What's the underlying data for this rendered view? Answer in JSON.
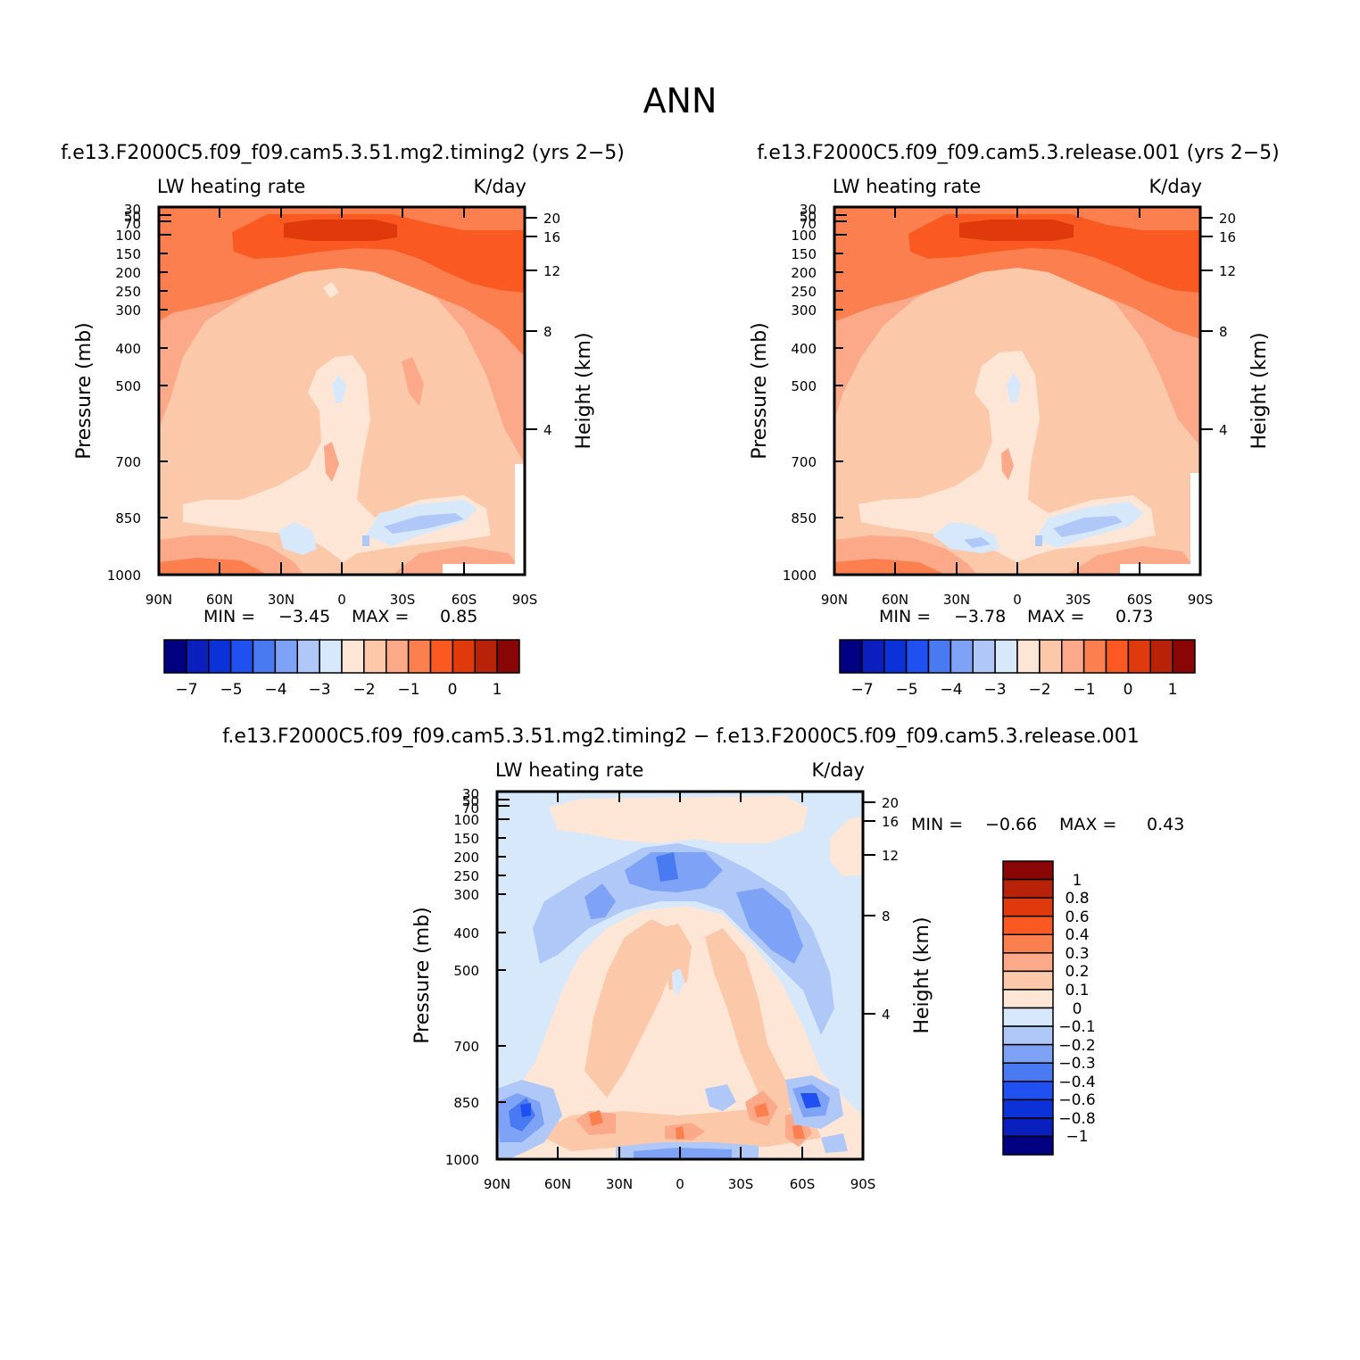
{
  "figure": {
    "title": "ANN",
    "colors": {
      "panel_abs": [
        "#000080",
        "#0a1fbd",
        "#0a32d8",
        "#2050f0",
        "#4a7af2",
        "#7ea2f5",
        "#b0c8f8",
        "#d8e8fb",
        "#fde6d6",
        "#fcc8aa",
        "#fca98a",
        "#fc7f50",
        "#fa5a22",
        "#e03a0c",
        "#b82208",
        "#8a0505"
      ],
      "panel_diff": [
        "#000080",
        "#0a1fbd",
        "#0a32d8",
        "#2050f0",
        "#4a7af2",
        "#7ea2f5",
        "#b0c8f8",
        "#d8e8fb",
        "#fde6d6",
        "#fcc8aa",
        "#fca98a",
        "#fc7f50",
        "#fa5a22",
        "#e03a0c",
        "#b82208",
        "#8a0505"
      ]
    }
  },
  "chart_data": [
    {
      "type": "contour",
      "id": "panel-1",
      "title": "f.e13.F2000C5.f09_f09.cam5.3.51.mg2.timing2 (yrs 2−5)",
      "left_label": "LW heating rate",
      "right_label": "K/day",
      "ylabel": "Pressure (mb)",
      "ylabel_right": "Height (km)",
      "x_ticks": [
        "90N",
        "60N",
        "30N",
        "0",
        "30S",
        "60S",
        "90S"
      ],
      "y_ticks": [
        "30",
        "50",
        "70",
        "100",
        "150",
        "200",
        "250",
        "300",
        "400",
        "500",
        "700",
        "850",
        "1000"
      ],
      "y_ticks_right": [
        "20",
        "16",
        "12",
        "8",
        "4"
      ],
      "min_label": "MIN =",
      "min_value": "−3.45",
      "max_label": "MAX =",
      "max_value": "0.85",
      "colorbar_labels": [
        "−7",
        "−5",
        "−4",
        "−3",
        "−2",
        "−1",
        "0",
        "1"
      ]
    },
    {
      "type": "contour",
      "id": "panel-2",
      "title": "f.e13.F2000C5.f09_f09.cam5.3.release.001 (yrs 2−5)",
      "left_label": "LW heating rate",
      "right_label": "K/day",
      "ylabel": "Pressure (mb)",
      "ylabel_right": "Height (km)",
      "x_ticks": [
        "90N",
        "60N",
        "30N",
        "0",
        "30S",
        "60S",
        "90S"
      ],
      "y_ticks": [
        "30",
        "50",
        "70",
        "100",
        "150",
        "200",
        "250",
        "300",
        "400",
        "500",
        "700",
        "850",
        "1000"
      ],
      "y_ticks_right": [
        "20",
        "16",
        "12",
        "8",
        "4"
      ],
      "min_label": "MIN =",
      "min_value": "−3.78",
      "max_label": "MAX =",
      "max_value": "0.73",
      "colorbar_labels": [
        "−7",
        "−5",
        "−4",
        "−3",
        "−2",
        "−1",
        "0",
        "1"
      ]
    },
    {
      "type": "contour",
      "id": "panel-diff",
      "title": "f.e13.F2000C5.f09_f09.cam5.3.51.mg2.timing2 − f.e13.F2000C5.f09_f09.cam5.3.release.001",
      "left_label": "LW heating rate",
      "right_label": "K/day",
      "ylabel": "Pressure (mb)",
      "ylabel_right": "Height (km)",
      "x_ticks": [
        "90N",
        "60N",
        "30N",
        "0",
        "30S",
        "60S",
        "90S"
      ],
      "y_ticks": [
        "30",
        "50",
        "70",
        "100",
        "150",
        "200",
        "250",
        "300",
        "400",
        "500",
        "700",
        "850",
        "1000"
      ],
      "y_ticks_right": [
        "20",
        "16",
        "12",
        "8",
        "4"
      ],
      "min_label": "MIN =",
      "min_value": "−0.66",
      "max_label": "MAX =",
      "max_value": "0.43",
      "colorbar_labels": [
        "1",
        "0.8",
        "0.6",
        "0.4",
        "0.3",
        "0.2",
        "0.1",
        "0",
        "−0.1",
        "−0.2",
        "−0.3",
        "−0.4",
        "−0.6",
        "−0.8",
        "−1"
      ]
    }
  ]
}
